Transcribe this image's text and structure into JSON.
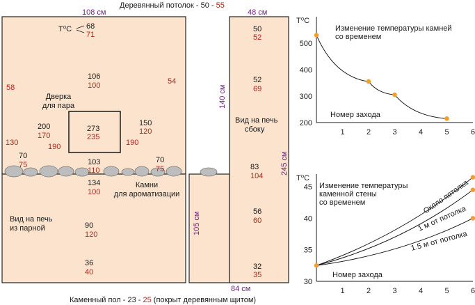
{
  "ceiling": {
    "prefix": "Деревянный потолок - 50 - ",
    "value_red": "55"
  },
  "floor": {
    "prefix": "Каменный пол - 23 - ",
    "value_red": "25",
    "suffix": " (покрыт деревянным щитом)"
  },
  "dimensions": {
    "width_front": "108 см",
    "width_side": "48 см",
    "h_side_upper": "140 см",
    "h_side_total": "245 см",
    "h_stove": "105 см",
    "width_stove": "84 см"
  },
  "labels": {
    "tc": "T⁰C",
    "door": [
      "Дверка",
      "для пара"
    ],
    "stones": [
      "Камни",
      "для ароматизации"
    ],
    "view_steam": [
      "Вид на печь",
      "из парной"
    ],
    "view_side": [
      "Вид на печь",
      "сбоку"
    ]
  },
  "temps": {
    "top_front": [
      "68",
      "71"
    ],
    "left_wall": "58",
    "right_wall": "54",
    "mid_front": [
      "106",
      "100"
    ],
    "door": [
      "273",
      "235"
    ],
    "left_mid": [
      "200",
      "170"
    ],
    "left_edge": "130",
    "left_190": "190",
    "right_mid": [
      "150",
      "120"
    ],
    "right_190": "190",
    "left_low": [
      "70",
      "75"
    ],
    "right_low": [
      "70",
      "75"
    ],
    "stones": [
      "103",
      "110"
    ],
    "stove_top": [
      "134",
      "100"
    ],
    "stove_mid": [
      "90",
      "120"
    ],
    "stove_bottom": [
      "36",
      "40"
    ],
    "side_top": [
      "50",
      "52"
    ],
    "side_2": [
      "52",
      "69"
    ],
    "side_3": [
      "83",
      "104"
    ],
    "side_4": [
      "56",
      "60"
    ],
    "side_5": [
      "32",
      "35"
    ]
  },
  "colors": {
    "wall_fill": "#fbe3cd",
    "accent_point": "#f0a030",
    "red_text": "#b3261e",
    "dimension_text": "#6b1f7a"
  },
  "chart_data": [
    {
      "type": "line",
      "title": "Изменение температуры камней со временем",
      "ylabel": "T⁰C",
      "xlabel": "Номер захода",
      "x_ticks": [
        1,
        2,
        3,
        4,
        5,
        6
      ],
      "y_ticks": [
        200,
        300,
        400,
        500
      ],
      "xlim": [
        0,
        6
      ],
      "ylim": [
        200,
        600
      ],
      "series": [
        {
          "x": [
            0,
            2,
            3,
            5
          ],
          "values": [
            530,
            355,
            305,
            215
          ]
        }
      ]
    },
    {
      "type": "line",
      "title": "Изменение температуры каменной стены со временем",
      "ylabel": "T⁰C",
      "xlabel": "Номер захода",
      "x_ticks": [
        1,
        2,
        3,
        4,
        5,
        6
      ],
      "y_ticks": [
        30,
        35,
        40,
        45
      ],
      "xlim": [
        0,
        6
      ],
      "ylim": [
        30,
        47
      ],
      "series": [
        {
          "name": "Около потолка",
          "x": [
            0,
            6
          ],
          "values": [
            32.5,
            46.5
          ]
        },
        {
          "name": "1 м от потолка",
          "x": [
            0,
            6
          ],
          "values": [
            32.5,
            44.5
          ]
        },
        {
          "name": "1.5 м от потолка",
          "x": [
            0,
            6
          ],
          "values": [
            32.5,
            40
          ]
        }
      ]
    }
  ]
}
